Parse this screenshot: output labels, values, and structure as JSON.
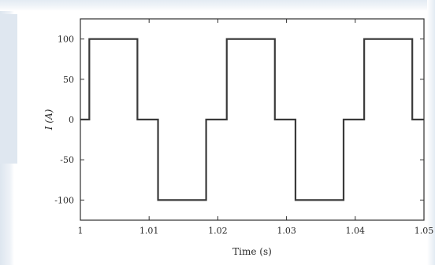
{
  "chart_data": {
    "type": "line",
    "title": "",
    "xlabel": "Time (s)",
    "ylabel": "I (A)",
    "xlim": [
      1.0,
      1.05
    ],
    "ylim": [
      -125,
      125
    ],
    "xticks": [
      1.0,
      1.01,
      1.02,
      1.03,
      1.04,
      1.05
    ],
    "xtick_labels": [
      "1",
      "1.01",
      "1.02",
      "1.03",
      "1.04",
      "1.05"
    ],
    "yticks": [
      100,
      50,
      0,
      -50,
      -100
    ],
    "ytick_labels": [
      "100",
      "50",
      "0",
      "-50",
      "-100"
    ],
    "grid": false,
    "legend": "none",
    "line_color": "#3a3a3a",
    "series": [
      {
        "x": [
          1.0,
          1.0013,
          1.0013,
          1.0083,
          1.0083,
          1.0113,
          1.0113,
          1.0183,
          1.0183,
          1.0213,
          1.0213,
          1.0283,
          1.0283,
          1.0313,
          1.0313,
          1.0383,
          1.0383,
          1.0413,
          1.0413,
          1.0483,
          1.0483,
          1.05
        ],
        "y": [
          0,
          0,
          100,
          100,
          0,
          0,
          -100,
          -100,
          0,
          0,
          100,
          100,
          0,
          0,
          -100,
          -100,
          0,
          0,
          100,
          100,
          0,
          0
        ]
      }
    ]
  }
}
